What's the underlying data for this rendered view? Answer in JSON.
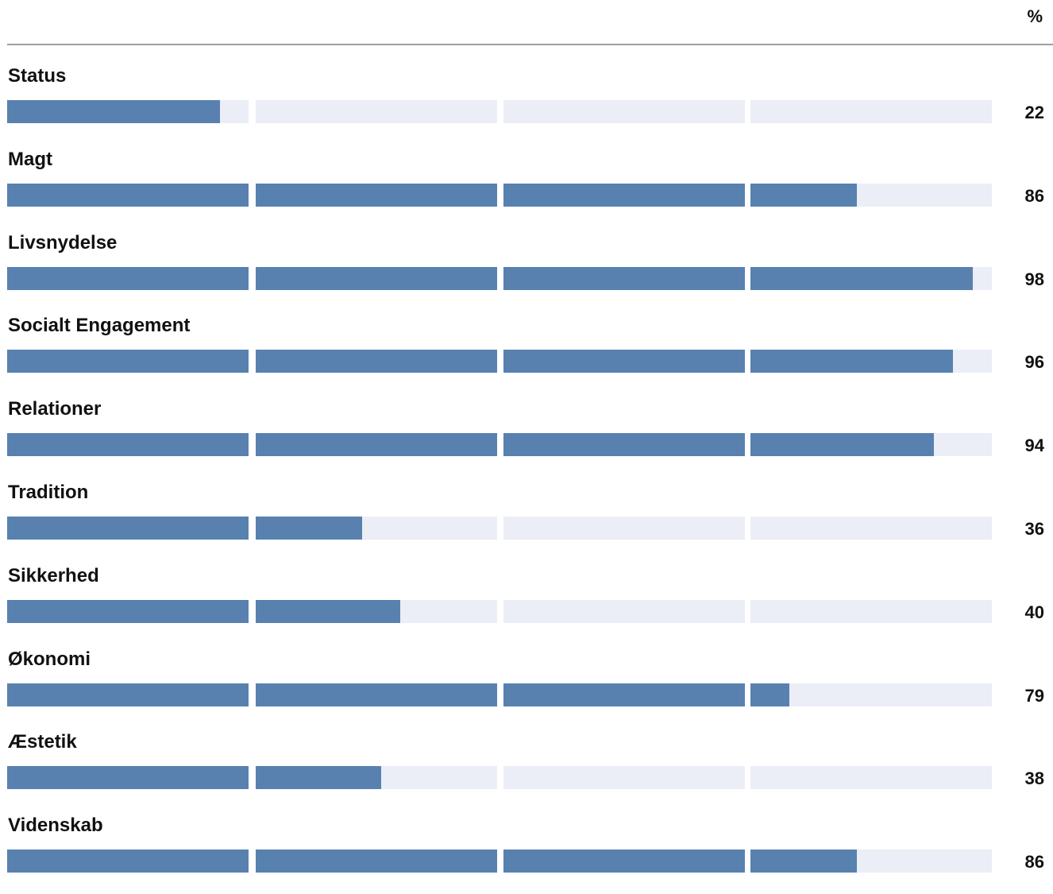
{
  "unit_label": "%",
  "colors": {
    "fill": "#5881b0",
    "track": "#ebeef6",
    "rule": "#9e9e9e"
  },
  "chart_data": {
    "type": "bar",
    "categories": [
      "Status",
      "Magt",
      "Livsnydelse",
      "Socialt Engagement",
      "Relationer",
      "Tradition",
      "Sikkerhed",
      "Økonomi",
      "Æstetik",
      "Videnskab"
    ],
    "values": [
      22,
      86,
      98,
      96,
      94,
      36,
      40,
      79,
      38,
      86
    ],
    "ylim": [
      0,
      100
    ],
    "segments": 4,
    "ylabel": "%"
  }
}
